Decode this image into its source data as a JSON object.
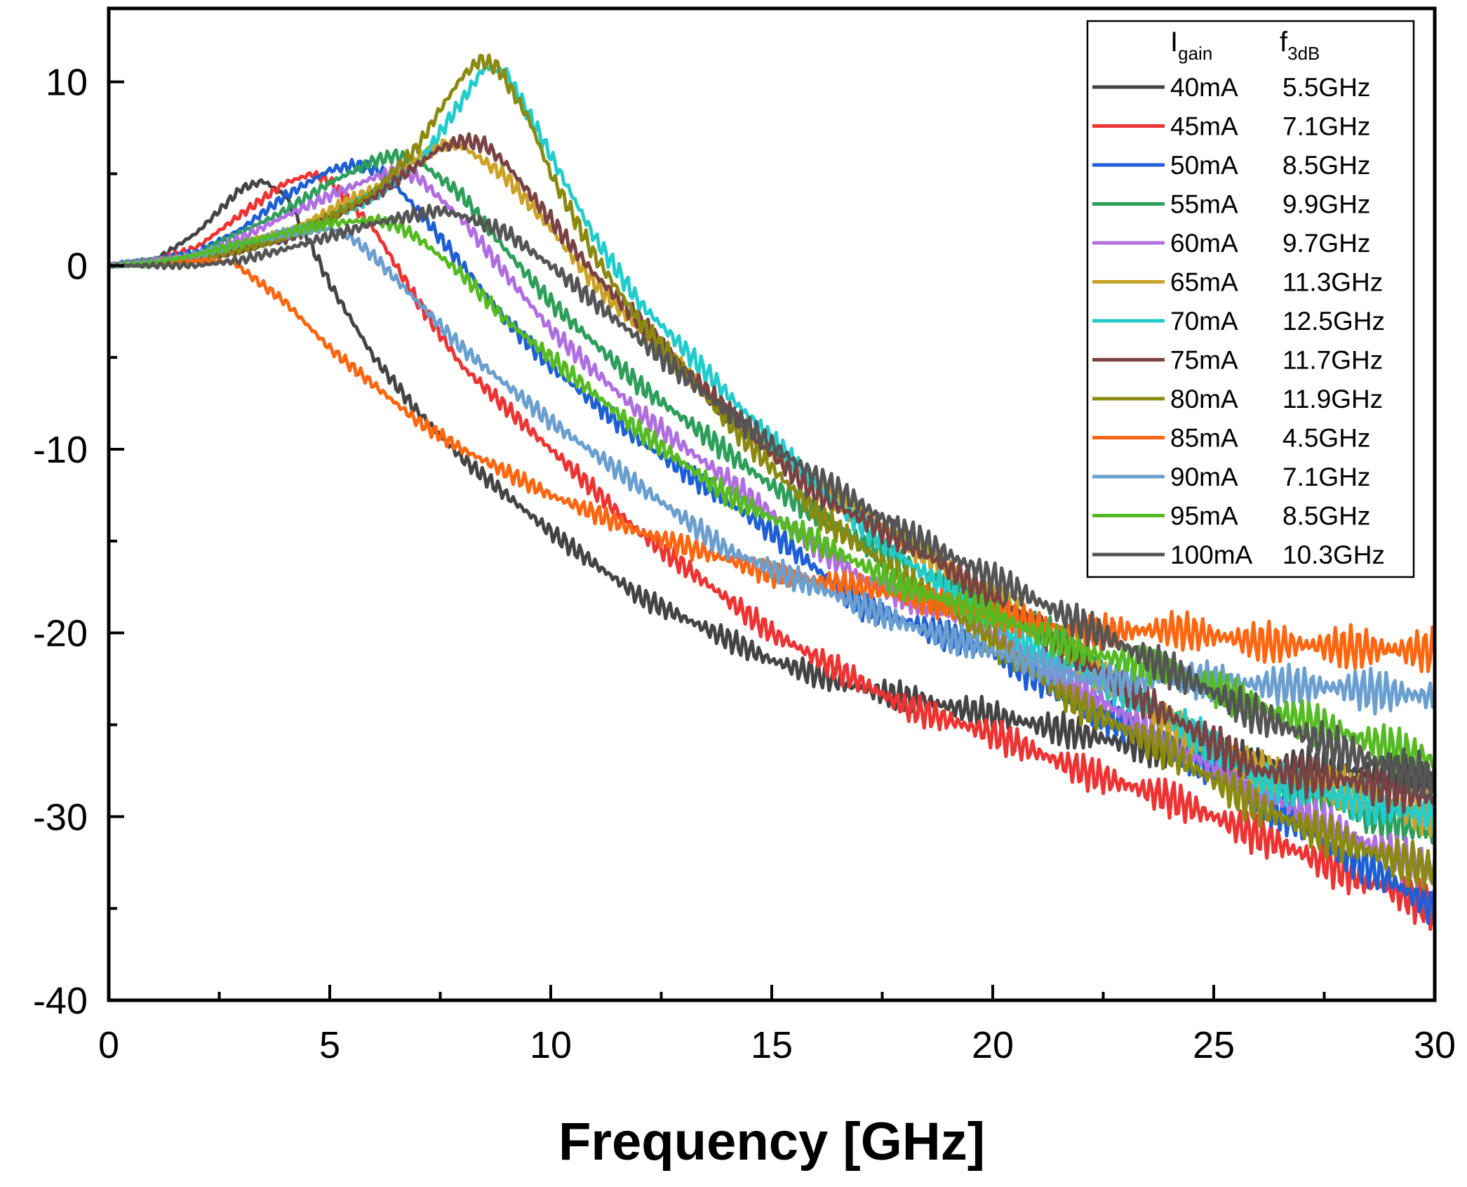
{
  "chart_data": {
    "type": "line",
    "title": "",
    "xlabel": "Frequency [GHz]",
    "ylabel": "",
    "xlim": [
      0,
      30
    ],
    "ylim": [
      -40,
      14
    ],
    "x_ticks": [
      0,
      5,
      10,
      15,
      20,
      25,
      30
    ],
    "y_ticks": [
      -40,
      -30,
      -20,
      -10,
      0,
      10
    ],
    "grid": false,
    "legend": {
      "position": "top-right",
      "header_current": "I",
      "header_current_sub": "gain",
      "header_freq": "f",
      "header_freq_sub": "3dB"
    },
    "series": [
      {
        "name": "40mA",
        "f3db": "5.5GHz",
        "color": "#444444",
        "points": [
          [
            0,
            0
          ],
          [
            1,
            0.2
          ],
          [
            2,
            1.8
          ],
          [
            3,
            4.2
          ],
          [
            3.5,
            4.6
          ],
          [
            4,
            3.8
          ],
          [
            4.5,
            1.5
          ],
          [
            5,
            -1
          ],
          [
            6,
            -5
          ],
          [
            7,
            -8
          ],
          [
            8,
            -10.5
          ],
          [
            10,
            -14.5
          ],
          [
            12,
            -18
          ],
          [
            15,
            -21.5
          ],
          [
            17,
            -23
          ],
          [
            20,
            -24.5
          ],
          [
            22,
            -25.5
          ],
          [
            24,
            -26.5
          ],
          [
            26,
            -27
          ],
          [
            28,
            -27.5
          ],
          [
            30,
            -28
          ]
        ]
      },
      {
        "name": "45mA",
        "f3db": "7.1GHz",
        "color": "#ee3333",
        "points": [
          [
            0,
            0
          ],
          [
            1,
            0.2
          ],
          [
            2,
            1
          ],
          [
            3,
            2.8
          ],
          [
            4,
            4.5
          ],
          [
            4.6,
            5
          ],
          [
            5,
            4.6
          ],
          [
            6,
            2
          ],
          [
            7,
            -2
          ],
          [
            8,
            -5.5
          ],
          [
            10,
            -10
          ],
          [
            12,
            -14.5
          ],
          [
            15,
            -20
          ],
          [
            18,
            -24
          ],
          [
            20,
            -25.5
          ],
          [
            22,
            -27.5
          ],
          [
            24,
            -29
          ],
          [
            26,
            -31
          ],
          [
            28,
            -33
          ],
          [
            30,
            -35
          ]
        ]
      },
      {
        "name": "50mA",
        "f3db": "8.5GHz",
        "color": "#1f5fd6",
        "points": [
          [
            0,
            0
          ],
          [
            2,
            0.7
          ],
          [
            3,
            2
          ],
          [
            4,
            3.8
          ],
          [
            5,
            5.2
          ],
          [
            5.6,
            5.5
          ],
          [
            6.2,
            5.1
          ],
          [
            7,
            3
          ],
          [
            8,
            0
          ],
          [
            9,
            -3
          ],
          [
            10,
            -5.5
          ],
          [
            12,
            -9.5
          ],
          [
            15,
            -14.5
          ],
          [
            17,
            -18.5
          ],
          [
            20,
            -21
          ],
          [
            22,
            -24
          ],
          [
            24,
            -26
          ],
          [
            26,
            -29
          ],
          [
            28,
            -32
          ],
          [
            30,
            -35
          ]
        ]
      },
      {
        "name": "55mA",
        "f3db": "9.9GHz",
        "color": "#2e9e5b",
        "points": [
          [
            0,
            0
          ],
          [
            2,
            0.6
          ],
          [
            3,
            1.8
          ],
          [
            4,
            3
          ],
          [
            5,
            4.5
          ],
          [
            6,
            5.7
          ],
          [
            6.5,
            6
          ],
          [
            7,
            5.7
          ],
          [
            8,
            3.8
          ],
          [
            9,
            0.8
          ],
          [
            10,
            -2
          ],
          [
            12,
            -6.5
          ],
          [
            15,
            -12
          ],
          [
            17,
            -15
          ],
          [
            20,
            -18.5
          ],
          [
            22,
            -21
          ],
          [
            24,
            -25
          ],
          [
            26,
            -27.5
          ],
          [
            28,
            -29.5
          ],
          [
            30,
            -31
          ]
        ]
      },
      {
        "name": "60mA",
        "f3db": "9.7GHz",
        "color": "#b06fe0",
        "points": [
          [
            0,
            0
          ],
          [
            2,
            0.5
          ],
          [
            3,
            1.5
          ],
          [
            4,
            2.7
          ],
          [
            5,
            3.8
          ],
          [
            6,
            4.8
          ],
          [
            6.5,
            5.2
          ],
          [
            7,
            4.8
          ],
          [
            8,
            2.5
          ],
          [
            9,
            -0.5
          ],
          [
            10,
            -3.5
          ],
          [
            12,
            -8
          ],
          [
            15,
            -13.5
          ],
          [
            17,
            -17
          ],
          [
            20,
            -20
          ],
          [
            22,
            -23
          ],
          [
            24,
            -26
          ],
          [
            26,
            -28.5
          ],
          [
            28,
            -31
          ],
          [
            30,
            -33
          ]
        ]
      },
      {
        "name": "65mA",
        "f3db": "11.3GHz",
        "color": "#c9a227",
        "points": [
          [
            0,
            0
          ],
          [
            2,
            0.4
          ],
          [
            4,
            1.8
          ],
          [
            5,
            3
          ],
          [
            6,
            4.2
          ],
          [
            7,
            5.8
          ],
          [
            7.5,
            6.6
          ],
          [
            8,
            6.5
          ],
          [
            9,
            4.8
          ],
          [
            10,
            2
          ],
          [
            11,
            -1
          ],
          [
            12,
            -3.5
          ],
          [
            14,
            -8
          ],
          [
            16,
            -12
          ],
          [
            18,
            -15
          ],
          [
            20,
            -18
          ],
          [
            22,
            -21.5
          ],
          [
            24,
            -25
          ],
          [
            26,
            -27.5
          ],
          [
            28,
            -28.5
          ],
          [
            30,
            -30
          ]
        ]
      },
      {
        "name": "70mA",
        "f3db": "12.5GHz",
        "color": "#22cccc",
        "points": [
          [
            0,
            0
          ],
          [
            2,
            0.3
          ],
          [
            4,
            1.6
          ],
          [
            5,
            2.6
          ],
          [
            6,
            3.8
          ],
          [
            7,
            5.5
          ],
          [
            8,
            9
          ],
          [
            8.5,
            10.8
          ],
          [
            9,
            10.5
          ],
          [
            10,
            6
          ],
          [
            11,
            1.5
          ],
          [
            12,
            -2
          ],
          [
            14,
            -7
          ],
          [
            16,
            -12
          ],
          [
            18,
            -16
          ],
          [
            20,
            -19.5
          ],
          [
            22,
            -22
          ],
          [
            24,
            -24.5
          ],
          [
            26,
            -28
          ],
          [
            28,
            -29
          ],
          [
            30,
            -30
          ]
        ]
      },
      {
        "name": "75mA",
        "f3db": "11.7GHz",
        "color": "#7a4242",
        "points": [
          [
            0,
            0
          ],
          [
            2,
            0.3
          ],
          [
            4,
            1.4
          ],
          [
            5,
            2.5
          ],
          [
            6,
            3.8
          ],
          [
            7,
            5.5
          ],
          [
            7.5,
            6.4
          ],
          [
            8,
            6.8
          ],
          [
            8.5,
            6.6
          ],
          [
            9,
            5.5
          ],
          [
            10,
            2.5
          ],
          [
            11,
            -0.5
          ],
          [
            12,
            -3
          ],
          [
            14,
            -8
          ],
          [
            16,
            -12.5
          ],
          [
            18,
            -15
          ],
          [
            20,
            -18
          ],
          [
            22,
            -21.5
          ],
          [
            24,
            -24.5
          ],
          [
            26,
            -27.5
          ],
          [
            28,
            -28
          ],
          [
            30,
            -29
          ]
        ]
      },
      {
        "name": "80mA",
        "f3db": "11.9GHz",
        "color": "#8a8a10",
        "points": [
          [
            0,
            0
          ],
          [
            2,
            0.3
          ],
          [
            4,
            1.5
          ],
          [
            5,
            2.6
          ],
          [
            6,
            4
          ],
          [
            7,
            6.5
          ],
          [
            7.5,
            8.5
          ],
          [
            8,
            10.3
          ],
          [
            8.4,
            11.2
          ],
          [
            8.8,
            10.8
          ],
          [
            9.5,
            8
          ],
          [
            10,
            5
          ],
          [
            11,
            0.5
          ],
          [
            12,
            -3
          ],
          [
            14,
            -8.5
          ],
          [
            16,
            -13.5
          ],
          [
            18,
            -17
          ],
          [
            20,
            -20.5
          ],
          [
            22,
            -24
          ],
          [
            24,
            -26.5
          ],
          [
            26,
            -29.5
          ],
          [
            28,
            -31.5
          ],
          [
            30,
            -33
          ]
        ]
      },
      {
        "name": "85mA",
        "f3db": "4.5GHz",
        "color": "#ff6610",
        "points": [
          [
            0,
            0
          ],
          [
            1,
            0.2
          ],
          [
            2,
            0.3
          ],
          [
            2.8,
            0.2
          ],
          [
            4,
            -2
          ],
          [
            5,
            -4.5
          ],
          [
            6,
            -6.5
          ],
          [
            7,
            -8.5
          ],
          [
            8,
            -10
          ],
          [
            10,
            -12.5
          ],
          [
            12,
            -14.5
          ],
          [
            14,
            -16
          ],
          [
            15,
            -16.8
          ],
          [
            17,
            -17.5
          ],
          [
            20,
            -19
          ],
          [
            22,
            -20
          ],
          [
            24,
            -19.8
          ],
          [
            26,
            -20.5
          ],
          [
            28,
            -20.8
          ],
          [
            30,
            -21
          ]
        ]
      },
      {
        "name": "90mA",
        "f3db": "7.1GHz",
        "color": "#6a9fcf",
        "points": [
          [
            0,
            0
          ],
          [
            1,
            0.2
          ],
          [
            2,
            0.6
          ],
          [
            3,
            1.2
          ],
          [
            4,
            1.8
          ],
          [
            5,
            2
          ],
          [
            5.5,
            1.5
          ],
          [
            6,
            0.5
          ],
          [
            7,
            -2
          ],
          [
            8,
            -4.5
          ],
          [
            10,
            -8.5
          ],
          [
            12,
            -12
          ],
          [
            14,
            -15.5
          ],
          [
            16,
            -17.5
          ],
          [
            18,
            -19.5
          ],
          [
            20,
            -21
          ],
          [
            22,
            -22.5
          ],
          [
            24,
            -22.5
          ],
          [
            26,
            -22.8
          ],
          [
            28,
            -23
          ],
          [
            30,
            -23.5
          ]
        ]
      },
      {
        "name": "95mA",
        "f3db": "8.5GHz",
        "color": "#55bb22",
        "points": [
          [
            0,
            0
          ],
          [
            1,
            0.1
          ],
          [
            2,
            0.6
          ],
          [
            3,
            1.2
          ],
          [
            4,
            1.8
          ],
          [
            5,
            2.3
          ],
          [
            6,
            2.5
          ],
          [
            6.5,
            2.2
          ],
          [
            7,
            1.5
          ],
          [
            8,
            -0.5
          ],
          [
            9,
            -3
          ],
          [
            10,
            -5
          ],
          [
            12,
            -9
          ],
          [
            14,
            -12.5
          ],
          [
            16,
            -15
          ],
          [
            18,
            -17.5
          ],
          [
            20,
            -19
          ],
          [
            22,
            -21
          ],
          [
            24,
            -22
          ],
          [
            26,
            -24
          ],
          [
            28,
            -25.5
          ],
          [
            30,
            -27
          ]
        ]
      },
      {
        "name": "100mA",
        "f3db": "10.3GHz",
        "color": "#555555",
        "points": [
          [
            0,
            0
          ],
          [
            1,
            0
          ],
          [
            2,
            0
          ],
          [
            3,
            0.3
          ],
          [
            4,
            0.9
          ],
          [
            5,
            1.6
          ],
          [
            6,
            2.3
          ],
          [
            7,
            2.8
          ],
          [
            7.5,
            3
          ],
          [
            8,
            2.7
          ],
          [
            9,
            1.8
          ],
          [
            10,
            0
          ],
          [
            12,
            -4
          ],
          [
            14,
            -8
          ],
          [
            16,
            -11.5
          ],
          [
            18,
            -14.5
          ],
          [
            20,
            -17
          ],
          [
            22,
            -19.5
          ],
          [
            24,
            -22
          ],
          [
            26,
            -24.5
          ],
          [
            28,
            -26.5
          ],
          [
            30,
            -28
          ]
        ]
      }
    ]
  }
}
